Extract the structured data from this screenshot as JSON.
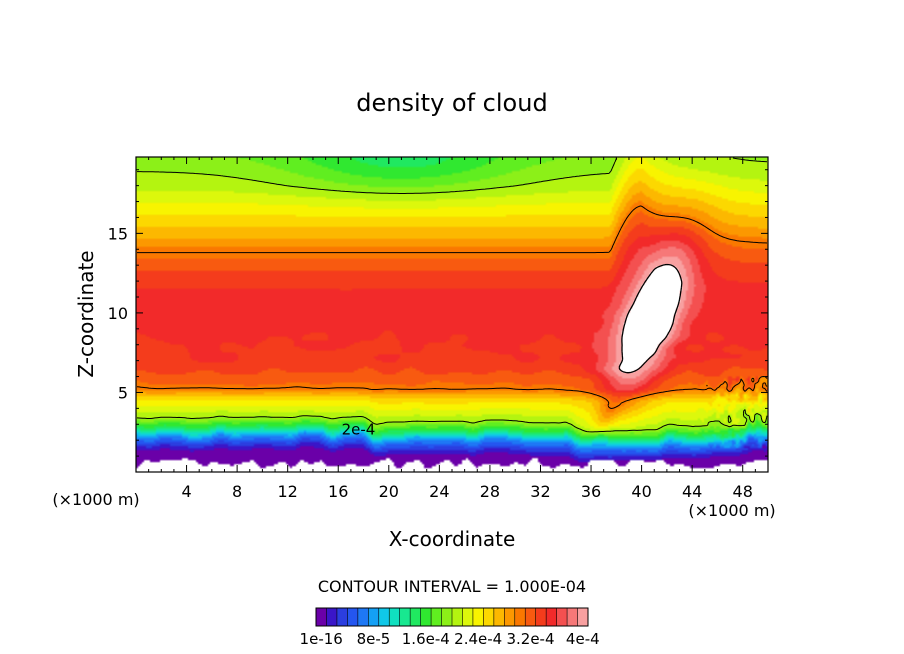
{
  "chart_data": {
    "type": "heatmap",
    "title": "density of cloud",
    "xlabel": "X-coordinate",
    "ylabel": "Z-coordinate",
    "x_unit": "(×1000 m)",
    "x_unit_right": "(×1000 m)",
    "xlim": [
      0,
      50
    ],
    "ylim": [
      0,
      19.8
    ],
    "x_ticks": [
      4,
      8,
      12,
      16,
      20,
      24,
      28,
      32,
      36,
      40,
      44,
      48
    ],
    "y_ticks": [
      5,
      10,
      15
    ],
    "contour_label": "2e-4",
    "contour_interval_text": "CONTOUR INTERVAL = 1.000E-04",
    "colorbar_labels": [
      "1e-16",
      "8e-5",
      "1.6e-4",
      "2.4e-4",
      "3.2e-4",
      "4e-4"
    ],
    "colorbar_colors": [
      "#6a00a8",
      "#3a16c8",
      "#2b3ee0",
      "#2456f0",
      "#1e78f5",
      "#14a0f5",
      "#10c8e8",
      "#10e0c0",
      "#18e890",
      "#20e860",
      "#30e830",
      "#60ee20",
      "#8cf018",
      "#b4f410",
      "#dcf80c",
      "#f8f400",
      "#fcd800",
      "#fcb800",
      "#fc9800",
      "#fa7800",
      "#f85a10",
      "#f43c1c",
      "#f22a2a",
      "#f45050",
      "#f67878",
      "#f8a0a0"
    ],
    "peak_color": "#ffffff",
    "contour_levels": [
      0.0002,
      0.0003
    ],
    "field_model": {
      "peak_value": 0.000445,
      "background_profile": [
        [
          0.0,
          0.0
        ],
        [
          1.0,
          5e-06
        ],
        [
          1.4,
          3e-05
        ],
        [
          2.0,
          8e-05
        ],
        [
          2.6,
          0.00015
        ],
        [
          3.2,
          0.0002
        ],
        [
          4.5,
          0.00025
        ],
        [
          5.2,
          0.0003
        ],
        [
          6.5,
          0.00033
        ],
        [
          9.0,
          0.000345
        ],
        [
          11.0,
          0.000345
        ],
        [
          12.5,
          0.000325
        ],
        [
          13.8,
          0.0003
        ],
        [
          15.0,
          0.00027
        ],
        [
          16.5,
          0.00024
        ],
        [
          18.0,
          0.00021
        ],
        [
          19.8,
          0.00019
        ]
      ],
      "green_patch": {
        "x": 21,
        "z": 19.5,
        "sx": 9,
        "sz": 2.2,
        "amount": 4.5e-05
      },
      "hump": {
        "x_start": 37.5,
        "x_peak": 40,
        "x_end": 50,
        "rise_km": 2.9,
        "plateau_rise_km": 0.5
      },
      "cloud_core": {
        "x": 40.5,
        "z": 9.2,
        "rx": 2.1,
        "rz": 6.0,
        "tilt_deg": 28,
        "amount": 0.000105
      },
      "lower_step": {
        "x": 34,
        "z_before": 3.2,
        "z_after": 2.6
      },
      "updraft_slot": {
        "x": 36,
        "z_low": 1.9,
        "z_high": 5.0
      },
      "base_height_wave": [
        [
          0,
          0.3
        ],
        [
          6,
          0.5
        ],
        [
          12,
          0.45
        ],
        [
          18,
          0.45
        ],
        [
          19,
          -0.2
        ],
        [
          24,
          -0.2
        ],
        [
          30,
          -0.05
        ],
        [
          34,
          -0.2
        ],
        [
          36,
          0.0
        ],
        [
          44,
          0.05
        ],
        [
          50,
          0.8
        ]
      ]
    }
  }
}
